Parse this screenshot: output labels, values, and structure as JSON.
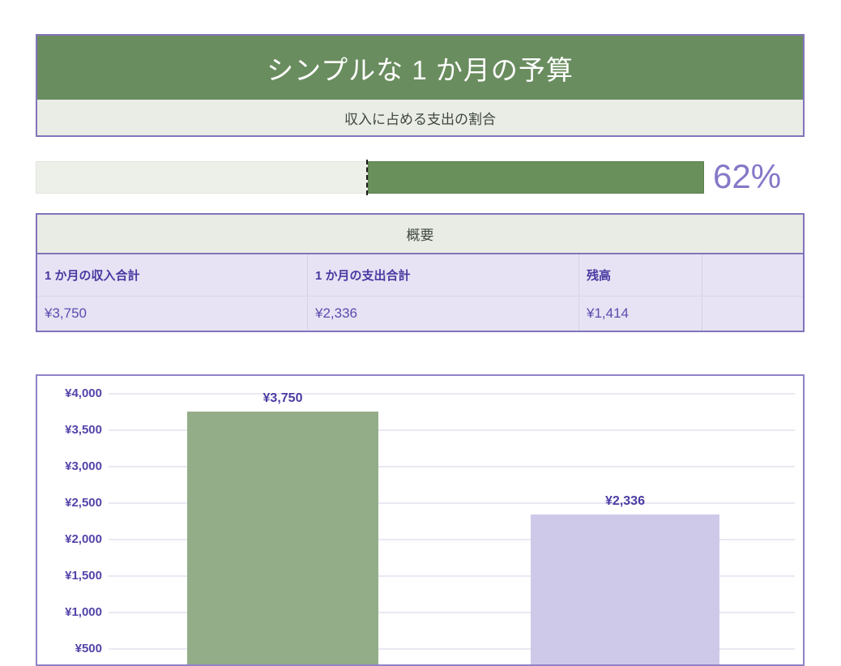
{
  "header": {
    "title": "シンプルな 1 か月の予算",
    "subtitle": "収入に占める支出の割合"
  },
  "progress": {
    "label": "62%",
    "percent": 62
  },
  "summary": {
    "title": "概要",
    "columns": [
      {
        "label": "1 か月の収入合計",
        "value": "¥3,750"
      },
      {
        "label": "1 か月の支出合計",
        "value": "¥2,336"
      },
      {
        "label": "残高",
        "value": "¥1,414"
      },
      {
        "label": "",
        "value": ""
      }
    ]
  },
  "chart_data": {
    "type": "bar",
    "categories": [
      "",
      ""
    ],
    "values": [
      3750,
      2336
    ],
    "bar_labels": [
      "¥3,750",
      "¥2,336"
    ],
    "bar_colors": [
      "#94ad89",
      "#cfc9e9"
    ],
    "ytick_labels": [
      "¥4,000",
      "¥3,500",
      "¥3,000",
      "¥2,500",
      "¥2,000",
      "¥1,500",
      "¥1,000",
      "¥500"
    ],
    "ytick_values": [
      4000,
      3500,
      3000,
      2500,
      2000,
      1500,
      1000,
      500
    ],
    "ylim_top": 4000,
    "tick_step": 500,
    "grid": true,
    "legend": false,
    "title": ""
  },
  "colors": {
    "accent_green": "#6a8d5f",
    "progress_green": "#69905b",
    "bar_green": "#94ad89",
    "bar_lavender": "#cfc9e9",
    "row_lavender": "#e7e3f4",
    "band_light_green": "#eaede5",
    "border_purple": "#8273bb",
    "text_purple_dark": "#4839a1",
    "text_purple": "#5a4caf",
    "text_percent": "#8678c8",
    "text_dark_green": "#3e473e"
  }
}
